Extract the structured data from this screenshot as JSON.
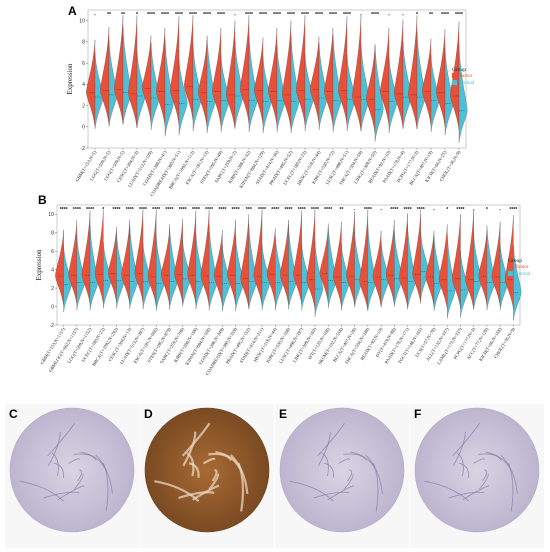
{
  "colors": {
    "tumor": "#e8503a",
    "normal": "#4dbfd6",
    "tissue_brown": "#8b5a2b",
    "tissue_purple": "#b9b3cc"
  },
  "chart_data": [
    {
      "panel": "A",
      "type": "violin",
      "ylabel": "Expression",
      "ylim": [
        -2,
        11
      ],
      "yticks": [
        -2,
        0,
        2,
        4,
        6,
        8,
        10
      ],
      "legend": {
        "title": "Group",
        "entries": [
          "Tumor",
          "Normal"
        ],
        "placement": "right"
      },
      "categories": [
        "GBM(T=153,N=5)",
        "LGG(T=509,N=5)",
        "LGG(T=509,N=5)",
        "CESC(T=304,N=3)",
        "LUAD(T=513,N=109)",
        "COAD(T=288,N=41)",
        "COADREAD(T=380,N=51)",
        "BRCA(T=1092,N=113)",
        "ESCA(T=181,N=13)",
        "STES(T=595,N=49)",
        "SARC(T=259,N=2)",
        "KIRP(T=288,N=32)",
        "KIPAN(T=884,N=129)",
        "STAD(T=414,N=36)",
        "PRAD(T=495,N=52)",
        "UCEC(T=180,N=23)",
        "HNSC(T=518,N=44)",
        "KIRC(T=530,N=72)",
        "LUSC(T=498,N=51)",
        "THCA(T=504,N=59)",
        "LIHC(T=369,N=50)",
        "READ(T=92,N=10)",
        "PAAD(T=178,N=4)",
        "PCPG(T=177,N=3)",
        "BLCA(T=407,N=19)",
        "KICH(T=66,N=25)",
        "CHOL(T=36,N=9)"
      ],
      "significance": [
        "-",
        "**",
        "**",
        "*",
        "****",
        "****",
        "****",
        "****",
        "****",
        "****",
        "-",
        "****",
        "****",
        "****",
        "****",
        "****",
        "****",
        "****",
        "****",
        "-",
        "****",
        "-",
        "-",
        "*",
        "**",
        "****",
        "****"
      ],
      "tumor_median": [
        3.2,
        3.4,
        3.5,
        3.1,
        3.6,
        3.3,
        3.4,
        3.8,
        3.2,
        3.3,
        3.0,
        3.5,
        3.4,
        3.3,
        3.0,
        3.4,
        3.5,
        3.3,
        3.4,
        2.8,
        2.6,
        3.3,
        3.1,
        3.0,
        3.3,
        3.2,
        2.9
      ],
      "normal_median": [
        2.8,
        3.0,
        3.2,
        2.9,
        2.7,
        2.1,
        2.2,
        2.6,
        2.4,
        2.5,
        2.9,
        2.5,
        2.4,
        2.5,
        2.4,
        2.6,
        2.7,
        2.5,
        2.6,
        2.6,
        1.6,
        2.4,
        2.8,
        2.8,
        2.5,
        2.2,
        1.5
      ]
    },
    {
      "panel": "B",
      "type": "violin",
      "ylabel": "Expression",
      "ylim": [
        -2,
        11
      ],
      "yticks": [
        -2,
        0,
        2,
        4,
        6,
        8,
        10
      ],
      "legend": {
        "title": "Group",
        "entries": [
          "Tumor",
          "Normal"
        ],
        "placement": "right"
      },
      "categories": [
        "GBM(T=153,N=1157)",
        "GBMLGG(T=662,N=1157)",
        "LGG(T=509,N=1152)",
        "UCEC(T=180,N=23)",
        "BRCA(T=1092,N=292)",
        "CESC(T=304,N=13)",
        "LUAD(T=513,N=397)",
        "ESCA(T=181,N=666)",
        "STES(T=595,N=879)",
        "SARC(T=259,N=708)",
        "KIRP(T=288,N=168)",
        "KIPAN(T=884,N=168)",
        "COAD(T=288,N=349)",
        "COADREAD(T=380,N=359)",
        "PRAD(T=495,N=152)",
        "STAD(T=414,N=211)",
        "HNSC(T=518,N=44)",
        "KIRC(T=530,N=168)",
        "LUSC(T=498,N=397)",
        "LIHC(T=369,N=160)",
        "WT(T=120,N=168)",
        "SKCM(T=102,N=558)",
        "BLCA(T=407,N=28)",
        "THCA(T=504,N=338)",
        "READ(T=92,N=10)",
        "OV(T=419,N=88)",
        "PAAD(T=178,N=171)",
        "TGCT(T=148,N=165)",
        "UCS(T=57,N=78)",
        "ALL(T=132,N=337)",
        "LAML(T=173,N=337)",
        "PCPG(T=177,N=3)",
        "ACC(T=77,N=128)",
        "KICH(T=66,N=168)",
        "CHOL(T=36,N=9)"
      ],
      "significance": [
        "****",
        "****",
        "****",
        "*",
        "****",
        "****",
        "****",
        "****",
        "****",
        "****",
        "****",
        "****",
        "****",
        "****",
        "***",
        "****",
        "****",
        "****",
        "****",
        "****",
        "****",
        "**",
        "-",
        "****",
        "-",
        "****",
        "****",
        "****",
        "-",
        "*",
        "****",
        "-",
        "*",
        "-",
        "****"
      ],
      "tumor_median": [
        3.3,
        3.4,
        3.4,
        3.5,
        3.6,
        3.4,
        3.6,
        3.2,
        3.4,
        3.5,
        3.4,
        3.3,
        3.3,
        3.4,
        3.0,
        3.3,
        3.5,
        3.4,
        3.4,
        2.9,
        3.6,
        3.2,
        3.3,
        2.7,
        3.2,
        3.4,
        3.1,
        3.5,
        3.2,
        2.9,
        3.0,
        2.9,
        3.3,
        3.2,
        2.9
      ],
      "normal_median": [
        2.4,
        2.6,
        2.6,
        2.8,
        2.8,
        2.7,
        2.7,
        2.5,
        2.7,
        3.0,
        2.7,
        2.6,
        2.5,
        2.5,
        2.7,
        2.6,
        2.6,
        2.7,
        2.6,
        1.9,
        2.8,
        2.6,
        2.9,
        2.6,
        2.9,
        3.0,
        2.7,
        3.8,
        2.5,
        1.7,
        1.8,
        2.7,
        2.6,
        2.6,
        1.5
      ]
    }
  ],
  "ihc_panels": [
    {
      "label": "C",
      "stain": "light"
    },
    {
      "label": "D",
      "stain": "strong"
    },
    {
      "label": "E",
      "stain": "light"
    },
    {
      "label": "F",
      "stain": "light"
    }
  ]
}
